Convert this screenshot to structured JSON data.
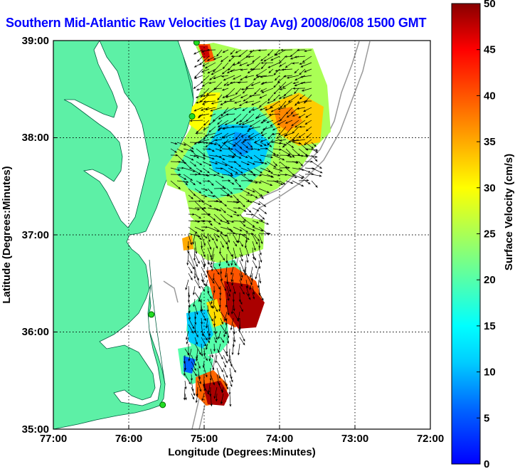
{
  "title": "Southern Mid-Atlantic Raw Velocities (1 Day Avg) 2008/06/08 1500 GMT",
  "x_axis": {
    "label": "Longitude (Degrees:Minutes)",
    "ticks": [
      "77:00",
      "76:00",
      "75:00",
      "74:00",
      "73:00",
      "72:00"
    ]
  },
  "y_axis": {
    "label": "Latitude (Degrees:Minutes)",
    "ticks": [
      "39:00",
      "38:00",
      "37:00",
      "36:00",
      "35:00"
    ]
  },
  "colorbar": {
    "label": "Surface Velocity (cm/s)",
    "ticks": [
      "0",
      "5",
      "10",
      "15",
      "20",
      "25",
      "30",
      "35",
      "40",
      "45",
      "50"
    ],
    "min": 0,
    "max": 50
  },
  "colors": {
    "land": "#5df0a6",
    "ocean": "#ffffff",
    "title": "#0000ff",
    "station_marker": "#22dd22"
  },
  "map_extent": {
    "lon_min": -77,
    "lon_max": -72,
    "lat_min": 35,
    "lat_max": 39
  },
  "grid": true,
  "stations": [
    {
      "lon": -75.1,
      "lat": 38.98
    },
    {
      "lon": -75.16,
      "lat": 38.22
    },
    {
      "lon": -75.7,
      "lat": 36.18
    },
    {
      "lon": -75.55,
      "lat": 35.25
    }
  ]
}
